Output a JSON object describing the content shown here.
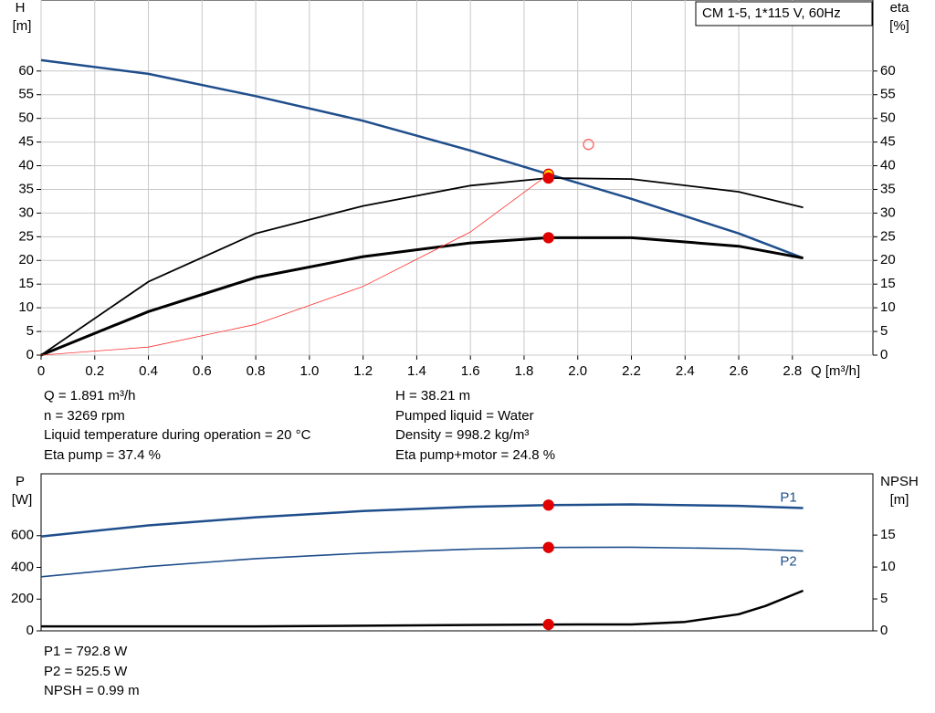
{
  "chart_data": [
    {
      "type": "line",
      "title": "CM 1-5, 1*115 V, 60Hz",
      "xlabel": "Q [m³/h]",
      "ylabel": "H",
      "ylabel_unit": "[m]",
      "y2label": "eta",
      "y2label_unit": "[%]",
      "xlim": [
        0,
        3.1
      ],
      "xticks": [
        0,
        0.2,
        0.4,
        0.6,
        0.8,
        {
          "value": 1.0,
          "label": "1.0"
        },
        1.2,
        1.4,
        1.6,
        1.8,
        {
          "value": 2.0,
          "label": "2.0"
        },
        2.2,
        2.4,
        2.6,
        2.8
      ],
      "ylim": [
        0,
        75
      ],
      "yticks": [
        0,
        5,
        10,
        15,
        20,
        25,
        30,
        35,
        40,
        45,
        50,
        55,
        60
      ],
      "y2lim": [
        0,
        75
      ],
      "y2ticks": [
        0,
        5,
        10,
        15,
        20,
        25,
        30,
        35,
        40,
        45,
        50,
        55,
        60
      ],
      "grid": true,
      "series": [
        {
          "color": "#1f4e8c",
          "linewidth": 2.5,
          "x": [
            0,
            0.4,
            0.8,
            1.2,
            1.6,
            1.891,
            2.2,
            2.6,
            2.84
          ],
          "values": [
            62.3,
            59.4,
            54.7,
            49.5,
            43.2,
            38.21,
            33,
            25.7,
            20.5
          ]
        },
        {
          "color": "#000000",
          "linewidth": 1.8,
          "axis": "y2",
          "x": [
            0,
            0.4,
            0.8,
            1.2,
            1.6,
            1.891,
            2.2,
            2.6,
            2.84
          ],
          "values": [
            0,
            15.5,
            25.7,
            31.5,
            35.8,
            37.4,
            37.2,
            34.5,
            31.2
          ]
        },
        {
          "color": "#000000",
          "linewidth": 3,
          "axis": "y2",
          "x": [
            0,
            0.4,
            0.8,
            1.2,
            1.6,
            1.891,
            2.2,
            2.6,
            2.84
          ],
          "values": [
            0,
            9.2,
            16.4,
            20.8,
            23.7,
            24.8,
            24.8,
            23,
            20.5
          ]
        },
        {
          "color": "#ff3030",
          "linewidth": 0.8,
          "x": [
            0,
            0.4,
            0.8,
            1.2,
            1.6,
            1.891
          ],
          "values": [
            0,
            1.7,
            6.5,
            14.5,
            26,
            38.2
          ]
        }
      ],
      "points": [
        {
          "x": 1.891,
          "y": 38.21,
          "color": "#ffd700",
          "edge": "#e00000"
        },
        {
          "x": 1.891,
          "y": 37.4,
          "axis": "y2",
          "color": "#e00000",
          "edge": "#e00000"
        },
        {
          "x": 1.891,
          "y": 24.8,
          "axis": "y2",
          "color": "#e00000",
          "edge": "#e00000"
        },
        {
          "x": 2.04,
          "y": 44.5,
          "color": "none",
          "edge": "#ff6060"
        }
      ]
    },
    {
      "type": "line",
      "ylabel": "P",
      "ylabel_unit": "[W]",
      "y2label": "NPSH",
      "y2label_unit": "[m]",
      "xlim": [
        0,
        3.1
      ],
      "ylim": [
        0,
        990
      ],
      "yticks": [
        0,
        200,
        400,
        600
      ],
      "y2lim": [
        0,
        24.6
      ],
      "y2ticks": [
        0,
        5,
        10,
        15
      ],
      "grid": false,
      "series": [
        {
          "name": "P1",
          "color": "#1f4e8c",
          "linewidth": 2.5,
          "x": [
            0,
            0.4,
            0.8,
            1.2,
            1.6,
            1.891,
            2.2,
            2.6,
            2.84
          ],
          "values": [
            595,
            665,
            716,
            755,
            782,
            792.8,
            797,
            788,
            774
          ]
        },
        {
          "name": "P2",
          "color": "#1f4e8c",
          "linewidth": 1.6,
          "x": [
            0,
            0.4,
            0.8,
            1.2,
            1.6,
            1.891,
            2.2,
            2.6,
            2.84
          ],
          "values": [
            341,
            405,
            455,
            490,
            515,
            525.5,
            527,
            518,
            503
          ]
        },
        {
          "color": "#000000",
          "linewidth": 2.5,
          "axis": "y2",
          "x": [
            0,
            0.8,
            1.891,
            2.2,
            2.4,
            2.6,
            2.7,
            2.84
          ],
          "values": [
            0.7,
            0.7,
            0.99,
            1.0,
            1.4,
            2.6,
            3.9,
            6.3
          ]
        }
      ],
      "points": [
        {
          "x": 1.891,
          "y": 792.8,
          "color": "#e00000",
          "edge": "#e00000"
        },
        {
          "x": 1.891,
          "y": 525.5,
          "color": "#e00000",
          "edge": "#e00000"
        },
        {
          "x": 1.891,
          "y": 0.99,
          "axis": "y2",
          "color": "#e00000",
          "edge": "#e00000"
        }
      ]
    }
  ],
  "readout": {
    "left": [
      "Q = 1.891 m³/h",
      "n = 3269 rpm",
      "Liquid temperature during operation = 20 °C",
      "Eta pump = 37.4 %"
    ],
    "right": [
      "H = 38.21 m",
      "Pumped liquid = Water",
      "Density = 998.2 kg/m³",
      "Eta pump+motor = 24.8 %"
    ],
    "power": [
      "P1 = 792.8 W",
      "P2 = 525.5 W",
      "NPSH = 0.99 m"
    ]
  }
}
